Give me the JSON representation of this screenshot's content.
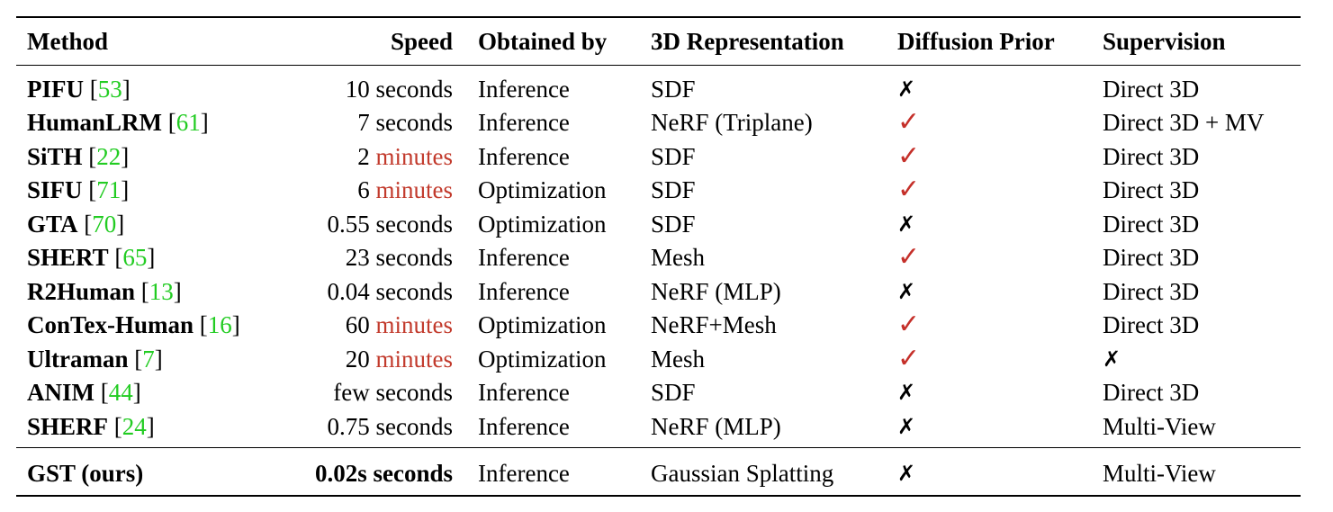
{
  "table": {
    "headers": {
      "method": "Method",
      "speed": "Speed",
      "obtained_by": "Obtained by",
      "representation": "3D Representation",
      "diffusion_prior": "Diffusion Prior",
      "supervision": "Supervision"
    },
    "symbols": {
      "check": "✓",
      "cross": "✗"
    },
    "rows": [
      {
        "method": "PIFU",
        "cite": "53",
        "speed_value": "10",
        "speed_unit": "seconds",
        "speed_unit_highlighted": false,
        "obtained_by": "Inference",
        "representation": "SDF",
        "diffusion_prior": false,
        "supervision": "Direct 3D"
      },
      {
        "method": "HumanLRM",
        "cite": "61",
        "speed_value": "7",
        "speed_unit": "seconds",
        "speed_unit_highlighted": false,
        "obtained_by": "Inference",
        "representation": "NeRF (Triplane)",
        "diffusion_prior": true,
        "supervision": "Direct 3D + MV"
      },
      {
        "method": "SiTH",
        "cite": "22",
        "speed_value": "2",
        "speed_unit": "minutes",
        "speed_unit_highlighted": true,
        "obtained_by": "Inference",
        "representation": "SDF",
        "diffusion_prior": true,
        "supervision": "Direct 3D"
      },
      {
        "method": "SIFU",
        "cite": "71",
        "speed_value": "6",
        "speed_unit": "minutes",
        "speed_unit_highlighted": true,
        "obtained_by": "Optimization",
        "representation": "SDF",
        "diffusion_prior": true,
        "supervision": "Direct 3D"
      },
      {
        "method": "GTA",
        "cite": "70",
        "speed_value": "0.55",
        "speed_unit": "seconds",
        "speed_unit_highlighted": false,
        "obtained_by": "Optimization",
        "representation": "SDF",
        "diffusion_prior": false,
        "supervision": "Direct 3D"
      },
      {
        "method": "SHERT",
        "cite": "65",
        "speed_value": "23",
        "speed_unit": "seconds",
        "speed_unit_highlighted": false,
        "obtained_by": "Inference",
        "representation": "Mesh",
        "diffusion_prior": true,
        "supervision": "Direct 3D"
      },
      {
        "method": "R2Human",
        "cite": "13",
        "speed_value": "0.04",
        "speed_unit": "seconds",
        "speed_unit_highlighted": false,
        "obtained_by": "Inference",
        "representation": "NeRF (MLP)",
        "diffusion_prior": false,
        "supervision": "Direct 3D"
      },
      {
        "method": "ConTex-Human",
        "cite": "16",
        "speed_value": "60",
        "speed_unit": "minutes",
        "speed_unit_highlighted": true,
        "obtained_by": "Optimization",
        "representation": "NeRF+Mesh",
        "diffusion_prior": true,
        "supervision": "Direct 3D"
      },
      {
        "method": "Ultraman",
        "cite": "7",
        "speed_value": "20",
        "speed_unit": "minutes",
        "speed_unit_highlighted": true,
        "obtained_by": "Optimization",
        "representation": "Mesh",
        "diffusion_prior": true,
        "supervision": null
      },
      {
        "method": "ANIM",
        "cite": "44",
        "speed_value": "few",
        "speed_unit": "seconds",
        "speed_unit_highlighted": false,
        "obtained_by": "Inference",
        "representation": "SDF",
        "diffusion_prior": false,
        "supervision": "Direct 3D"
      },
      {
        "method": "SHERF",
        "cite": "24",
        "speed_value": "0.75",
        "speed_unit": "seconds",
        "speed_unit_highlighted": false,
        "obtained_by": "Inference",
        "representation": "NeRF (MLP)",
        "diffusion_prior": false,
        "supervision": "Multi-View"
      }
    ],
    "ours": {
      "method": "GST (ours)",
      "speed": "0.02s seconds",
      "obtained_by": "Inference",
      "representation": "Gaussian Splatting",
      "diffusion_prior": false,
      "supervision": "Multi-View"
    }
  },
  "colors": {
    "citation": "#22cc22",
    "highlight": "#c23a2c",
    "check": "#c5302a"
  }
}
